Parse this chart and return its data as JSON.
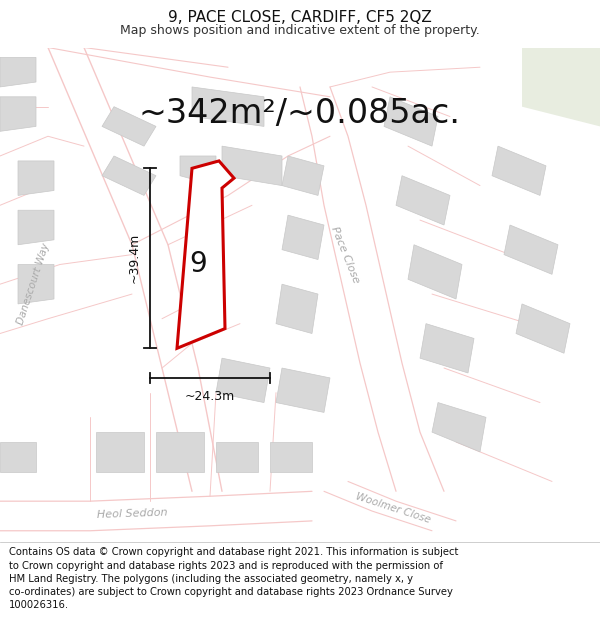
{
  "title": "9, PACE CLOSE, CARDIFF, CF5 2QZ",
  "subtitle": "Map shows position and indicative extent of the property.",
  "area_text": "~342m²/~0.085ac.",
  "width_text": "~24.3m",
  "height_text": "~39.4m",
  "plot_number": "9",
  "footnote": "Contains OS data © Crown copyright and database right 2021. This information is subject to Crown copyright and database rights 2023 and is reproduced with the permission of HM Land Registry. The polygons (including the associated geometry, namely x, y co-ordinates) are subject to Crown copyright and database rights 2023 Ordnance Survey 100026316.",
  "bg_color": "#ffffff",
  "map_bg": "#ffffff",
  "plot_fill": "#ffffff",
  "plot_edge": "#cc0000",
  "road_color": "#f5c8c8",
  "building_color": "#d8d8d8",
  "building_edge": "#c8c8c8",
  "street_label_color": "#aaaaaa",
  "dim_color": "#111111",
  "title_fontsize": 11,
  "subtitle_fontsize": 9,
  "area_fontsize": 24,
  "dim_fontsize": 9,
  "plot_num_fontsize": 20,
  "footnote_fontsize": 7.2
}
